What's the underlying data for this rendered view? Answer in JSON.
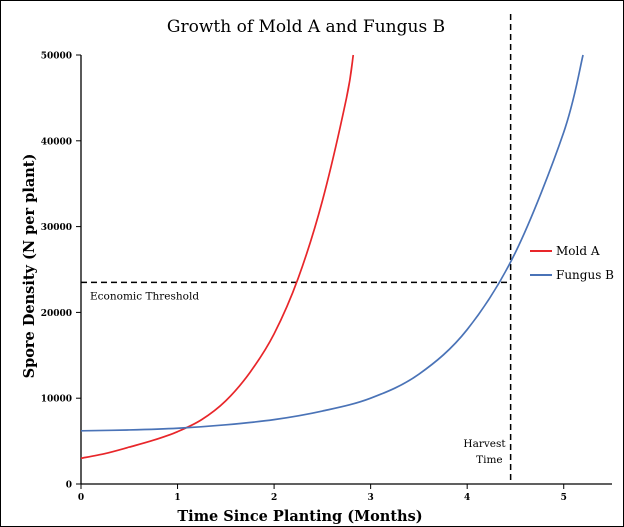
{
  "chart_data": {
    "type": "line",
    "title": "Growth of Mold A and Fungus B",
    "xlabel": "Time Since Planting (Months)",
    "ylabel": "Spore Density (N per plant)",
    "xlim": [
      0,
      5.5
    ],
    "ylim": [
      0,
      50000
    ],
    "x_ticks": [
      0,
      1,
      2,
      3,
      4,
      5
    ],
    "y_ticks": [
      0,
      10000,
      20000,
      30000,
      40000,
      50000
    ],
    "grid": false,
    "legend_position": "right",
    "series": [
      {
        "name": "Mold A",
        "color": "#e8262a",
        "x": [
          0,
          0.25,
          0.5,
          0.75,
          1.0,
          1.25,
          1.5,
          1.75,
          2.0,
          2.25,
          2.5,
          2.75,
          2.82
        ],
        "y": [
          3000,
          3550,
          4300,
          5100,
          6100,
          7500,
          9700,
          13000,
          17500,
          24000,
          33000,
          45000,
          50000
        ]
      },
      {
        "name": "Fungus B",
        "color": "#4a73b7",
        "x": [
          0,
          0.5,
          1.0,
          1.5,
          2.0,
          2.5,
          3.0,
          3.5,
          4.0,
          4.5,
          5.0,
          5.2
        ],
        "y": [
          6200,
          6300,
          6500,
          6900,
          7500,
          8500,
          10000,
          12800,
          18000,
          27000,
          41000,
          50000
        ]
      }
    ],
    "reference_lines": [
      {
        "orientation": "horizontal",
        "value": 23500,
        "label": "Economic Threshold",
        "style": "dashed"
      },
      {
        "orientation": "vertical",
        "value": 4.45,
        "label_line1": "Harvest",
        "label_line2": "Time",
        "style": "dashed"
      }
    ]
  }
}
